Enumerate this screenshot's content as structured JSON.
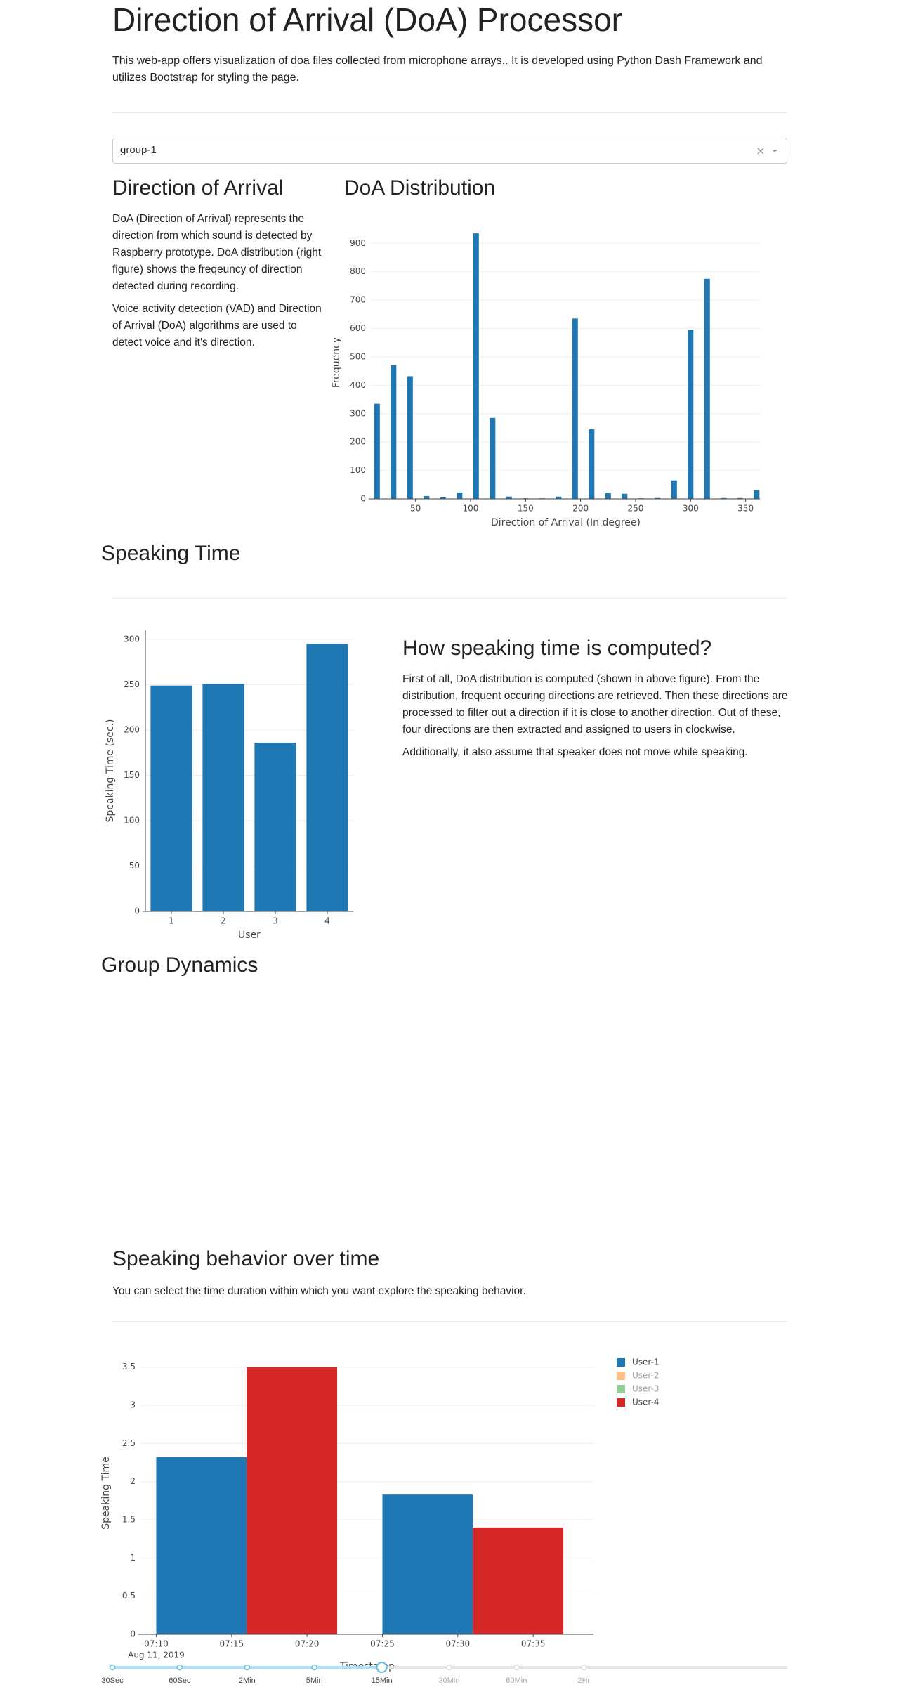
{
  "header": {
    "title": "Direction of Arrival (DoA) Processor",
    "description": "This web-app offers visualization of doa files collected from microphone arrays.. It is developed using Python Dash Framework and utilizes Bootstrap for styling the page."
  },
  "dropdown": {
    "value": "group-1"
  },
  "doa_section": {
    "heading": "Direction of Arrival",
    "paragraphs": [
      "DoA (Direction of Arrival) represents the direction from which sound is detected by Raspberry prototype. DoA distribution (right figure) shows the freqeuncy of direction detected during recording.",
      "Voice activity detection (VAD) and Direction of Arrival (DoA) algorithms are used to detect voice and it's direction."
    ]
  },
  "speaking_time": {
    "heading": "Speaking Time",
    "explanation_heading": "How speaking time is computed?",
    "paragraphs": [
      "First of all, DoA distribution is computed (shown in above figure). From the distribution, frequent occuring directions are retrieved. Then these directions are processed to filter out a direction if it is close to another direction. Out of these, four directions are then extracted and assigned to users in clockwise.",
      "Additionally, it also assume that speaker does not move while speaking."
    ]
  },
  "group_dynamics": {
    "heading": "Group Dynamics"
  },
  "behavior": {
    "heading": "Speaking behavior over time",
    "description": "You can select the time duration within which you want explore the speaking behavior."
  },
  "time_selector": {
    "options": [
      "30Sec",
      "60Sec",
      "2Min",
      "5Min",
      "15Min",
      "30Min",
      "60Min",
      "2Hr"
    ],
    "selected": 4
  },
  "chart_data": [
    {
      "type": "bar",
      "title": "DoA Distribution",
      "x": [
        15,
        30,
        45,
        60,
        75,
        90,
        105,
        120,
        135,
        150,
        165,
        180,
        195,
        210,
        225,
        240,
        255,
        270,
        285,
        300,
        315,
        330,
        345,
        360
      ],
      "values": [
        335,
        470,
        432,
        10,
        5,
        22,
        935,
        285,
        8,
        2,
        2,
        8,
        635,
        245,
        20,
        18,
        2,
        3,
        65,
        595,
        775,
        3,
        3,
        30
      ],
      "color": "#1f77b4",
      "xlim": [
        10,
        363
      ],
      "xticks": [
        50,
        100,
        150,
        200,
        250,
        300,
        350
      ],
      "ylim": [
        0,
        960
      ],
      "yticks": [
        0,
        100,
        200,
        300,
        400,
        500,
        600,
        700,
        800,
        900
      ],
      "xlabel": "Direction of Arrival (In degree)",
      "ylabel": "Frequency",
      "grid": true
    },
    {
      "type": "bar",
      "categories": [
        "1",
        "2",
        "3",
        "4"
      ],
      "values": [
        249,
        251,
        186,
        295
      ],
      "color": "#1f77b4",
      "ylim": [
        0,
        310
      ],
      "yticks": [
        0,
        50,
        100,
        150,
        200,
        250,
        300
      ],
      "xlabel": "User",
      "ylabel": "Speaking Time (sec.)",
      "grid": true
    },
    {
      "type": "bar",
      "x": [
        "2019-08-11 07:16",
        "2019-08-11 07:31"
      ],
      "series": [
        {
          "name": "User-1",
          "color": "#1f77b4",
          "values": [
            2.32,
            1.83
          ]
        },
        {
          "name": "User-2",
          "color": "#ff7f0e",
          "values": [
            null,
            null
          ],
          "visible": false
        },
        {
          "name": "User-3",
          "color": "#2ca02c",
          "values": [
            null,
            null
          ],
          "visible": false
        },
        {
          "name": "User-4",
          "color": "#d62728",
          "values": [
            3.5,
            1.4
          ]
        }
      ],
      "xlim": [
        "2019-08-11 07:09",
        "2019-08-11 07:39"
      ],
      "xticks": [
        {
          "value": "2019-08-11 07:10",
          "label": "07:10"
        },
        {
          "value": "2019-08-11 07:15",
          "label": "07:15"
        },
        {
          "value": "2019-08-11 07:20",
          "label": "07:20"
        },
        {
          "value": "2019-08-11 07:25",
          "label": "07:25"
        },
        {
          "value": "2019-08-11 07:30",
          "label": "07:30"
        },
        {
          "value": "2019-08-11 07:35",
          "label": "07:35"
        }
      ],
      "x_date_label": "Aug 11, 2019",
      "ylim": [
        0,
        3.7
      ],
      "yticks": [
        0,
        0.5,
        1,
        1.5,
        2,
        2.5,
        3,
        3.5
      ],
      "xlabel": "Timestamp",
      "ylabel": "Speaking Time",
      "legend": "right",
      "grid": true
    }
  ]
}
